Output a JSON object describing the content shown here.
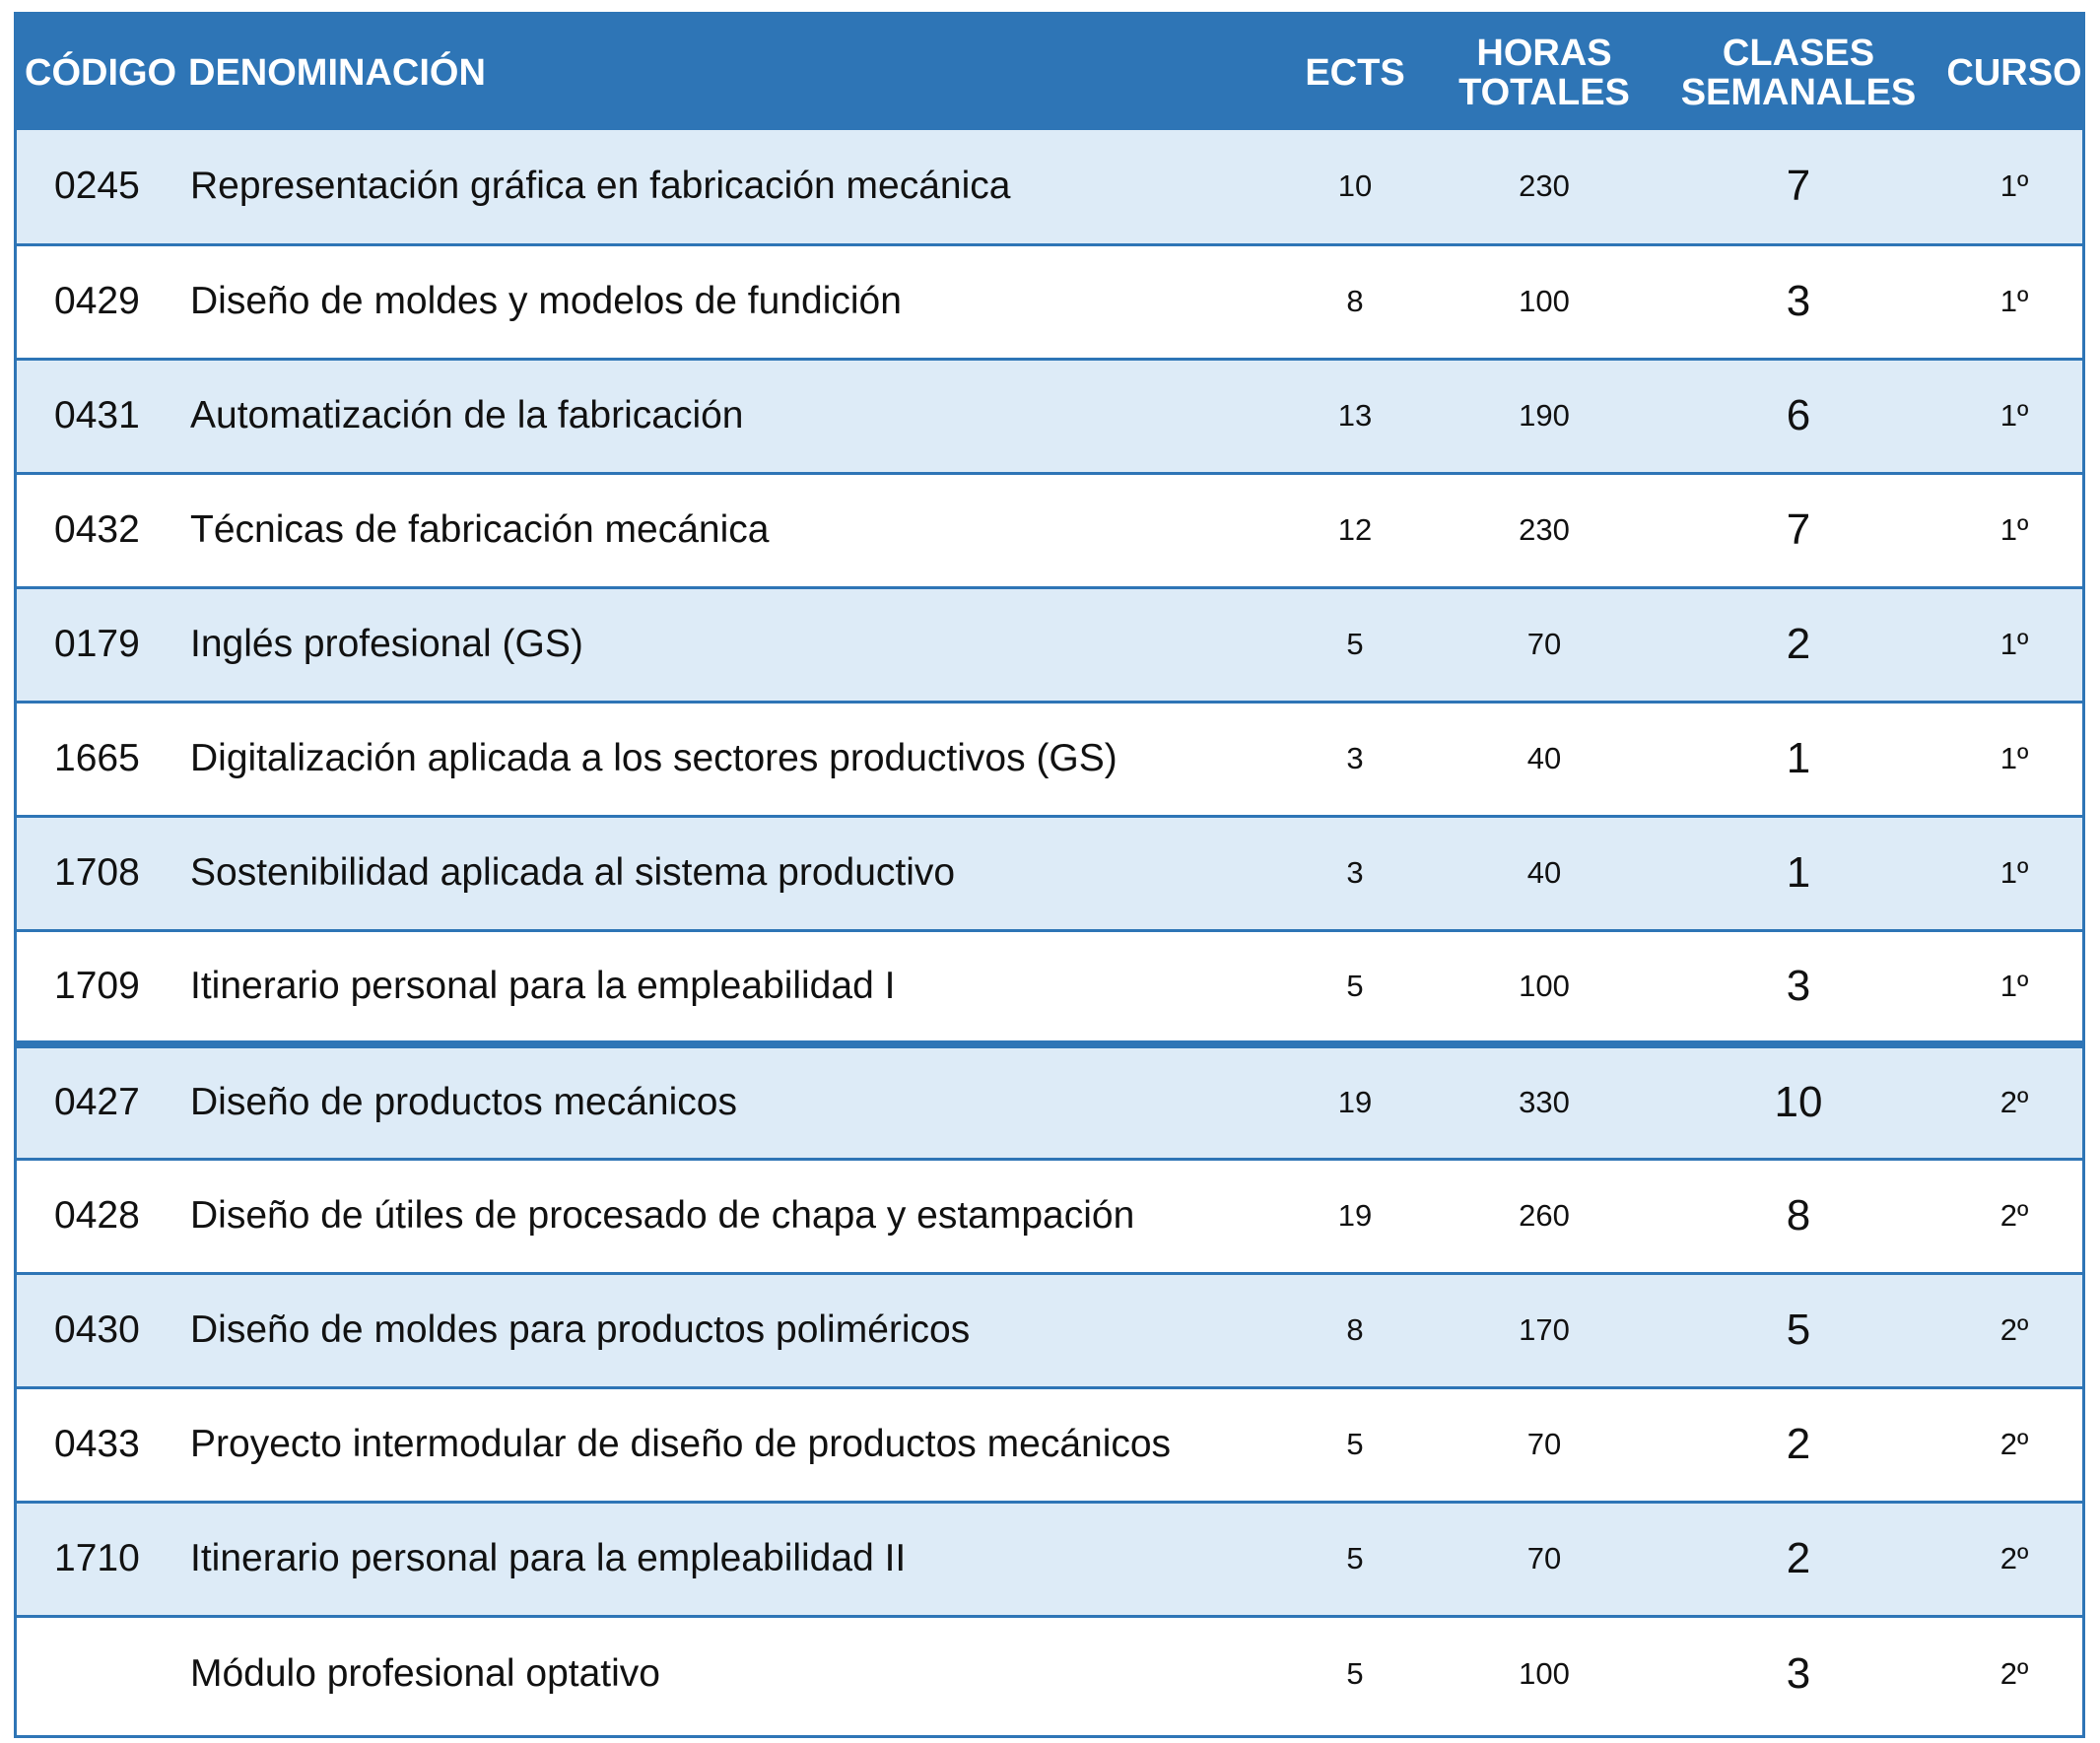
{
  "colors": {
    "header_bg": "#2E75B6",
    "header_text": "#FFFFFF",
    "row_shade": "#DDEBF7",
    "row_plain": "#FFFFFF",
    "border": "#2E75B6"
  },
  "headers": {
    "codigo": "CÓDIGO",
    "denominacion": "DENOMINACIÓN",
    "ects": "ECTS",
    "horas_line1": "HORAS",
    "horas_line2": "TOTALES",
    "clases_line1": "CLASES",
    "clases_line2": "SEMANALES",
    "curso": "CURSO"
  },
  "rows": [
    {
      "codigo": "0245",
      "denominacion": "Representación gráfica en fabricación mecánica",
      "ects": "10",
      "horas": "230",
      "clases": "7",
      "curso": "1º"
    },
    {
      "codigo": "0429",
      "denominacion": "Diseño de moldes y modelos de fundición",
      "ects": "8",
      "horas": "100",
      "clases": "3",
      "curso": "1º"
    },
    {
      "codigo": "0431",
      "denominacion": "Automatización de la fabricación",
      "ects": "13",
      "horas": "190",
      "clases": "6",
      "curso": "1º"
    },
    {
      "codigo": "0432",
      "denominacion": "Técnicas de fabricación mecánica",
      "ects": "12",
      "horas": "230",
      "clases": "7",
      "curso": "1º"
    },
    {
      "codigo": "0179",
      "denominacion": "Inglés profesional (GS)",
      "ects": "5",
      "horas": "70",
      "clases": "2",
      "curso": "1º"
    },
    {
      "codigo": "1665",
      "denominacion": "Digitalización aplicada a los sectores productivos (GS)",
      "ects": "3",
      "horas": "40",
      "clases": "1",
      "curso": "1º"
    },
    {
      "codigo": "1708",
      "denominacion": "Sostenibilidad aplicada al sistema productivo",
      "ects": "3",
      "horas": "40",
      "clases": "1",
      "curso": "1º"
    },
    {
      "codigo": "1709",
      "denominacion": "Itinerario personal para la empleabilidad I",
      "ects": "5",
      "horas": "100",
      "clases": "3",
      "curso": "1º"
    },
    {
      "codigo": "0427",
      "denominacion": "Diseño de productos mecánicos",
      "ects": "19",
      "horas": "330",
      "clases": "10",
      "curso": "2º"
    },
    {
      "codigo": "0428",
      "denominacion": "Diseño de útiles de procesado de chapa y estampación",
      "ects": "19",
      "horas": "260",
      "clases": "8",
      "curso": "2º"
    },
    {
      "codigo": "0430",
      "denominacion": "Diseño de moldes para productos poliméricos",
      "ects": "8",
      "horas": "170",
      "clases": "5",
      "curso": "2º"
    },
    {
      "codigo": "0433",
      "denominacion": "Proyecto intermodular de diseño de productos mecánicos",
      "ects": "5",
      "horas": "70",
      "clases": "2",
      "curso": "2º"
    },
    {
      "codigo": "1710",
      "denominacion": "Itinerario personal para la empleabilidad II",
      "ects": "5",
      "horas": "70",
      "clases": "2",
      "curso": "2º"
    },
    {
      "codigo": "",
      "denominacion": "Módulo profesional optativo",
      "ects": "5",
      "horas": "100",
      "clases": "3",
      "curso": "2º"
    }
  ]
}
